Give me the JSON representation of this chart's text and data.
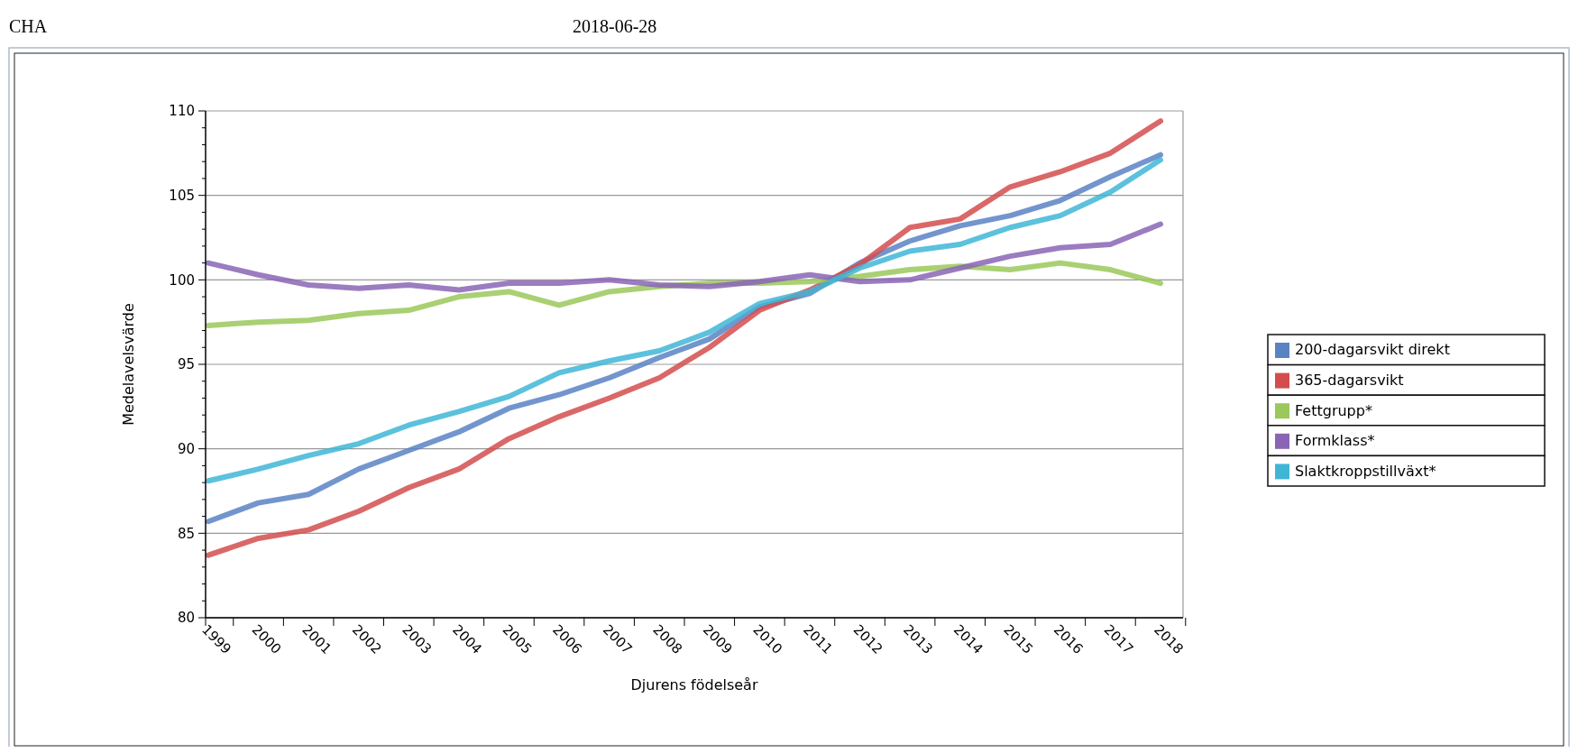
{
  "chart_data": {
    "type": "line",
    "title": "CHA",
    "subtitle": "2018-06-28",
    "xlabel": "Djurens födelseår",
    "ylabel": "Medelavelsvärde",
    "categories": [
      "1999",
      "2000",
      "2001",
      "2002",
      "2003",
      "2004",
      "2005",
      "2006",
      "2007",
      "2008",
      "2009",
      "2010",
      "2011",
      "2012",
      "2013",
      "2014",
      "2015",
      "2016",
      "2017",
      "2018"
    ],
    "series": [
      {
        "name": "200-dagarsvikt direkt",
        "color": "#5b83c4",
        "values": [
          85.7,
          86.8,
          87.3,
          88.8,
          89.9,
          91.0,
          92.4,
          93.2,
          94.2,
          95.4,
          96.5,
          98.4,
          99.2,
          101.0,
          102.3,
          103.2,
          103.8,
          104.7,
          106.1,
          107.4
        ]
      },
      {
        "name": "365-dagarsvikt",
        "color": "#d34d4d",
        "values": [
          83.7,
          84.7,
          85.2,
          86.3,
          87.7,
          88.8,
          90.6,
          91.9,
          93.0,
          94.2,
          96.0,
          98.2,
          99.4,
          100.9,
          103.1,
          103.6,
          105.5,
          106.4,
          107.5,
          109.4
        ]
      },
      {
        "name": "Fettgrupp*",
        "color": "#9ac85a",
        "values": [
          97.3,
          97.5,
          97.6,
          98.0,
          98.2,
          99.0,
          99.3,
          98.5,
          99.3,
          99.6,
          99.8,
          99.8,
          99.9,
          100.2,
          100.6,
          100.8,
          100.6,
          101.0,
          100.6,
          99.8
        ]
      },
      {
        "name": "Formklass*",
        "color": "#8a65b5",
        "values": [
          101.0,
          100.3,
          99.7,
          99.5,
          99.7,
          99.4,
          99.8,
          99.8,
          100.0,
          99.7,
          99.6,
          99.9,
          100.3,
          99.9,
          100.0,
          100.7,
          101.4,
          101.9,
          102.1,
          103.3
        ]
      },
      {
        "name": "Slaktkroppstillväxt*",
        "color": "#3fb6d6",
        "values": [
          88.1,
          88.8,
          89.6,
          90.3,
          91.4,
          92.2,
          93.1,
          94.5,
          95.2,
          95.8,
          96.9,
          98.6,
          99.3,
          100.7,
          101.7,
          102.1,
          103.1,
          103.8,
          105.2,
          107.1
        ]
      }
    ],
    "ylim": [
      80,
      110
    ],
    "yticks": [
      80,
      {
        "value": 81,
        "label": null
      },
      {
        "value": 82,
        "label": null
      },
      {
        "value": 83,
        "label": null
      },
      {
        "value": 84,
        "label": null
      },
      85,
      {
        "value": 86,
        "label": null
      },
      {
        "value": 87,
        "label": null
      },
      {
        "value": 88,
        "label": null
      },
      {
        "value": 89,
        "label": null
      },
      90,
      {
        "value": 91,
        "label": null
      },
      {
        "value": 92,
        "label": null
      },
      {
        "value": 93,
        "label": null
      },
      {
        "value": 94,
        "label": null
      },
      95,
      {
        "value": 96,
        "label": null
      },
      {
        "value": 97,
        "label": null
      },
      {
        "value": 98,
        "label": null
      },
      {
        "value": 99,
        "label": null
      },
      100,
      {
        "value": 101,
        "label": null
      },
      {
        "value": 102,
        "label": null
      },
      {
        "value": 103,
        "label": null
      },
      {
        "value": 104,
        "label": null
      },
      105,
      {
        "value": 106,
        "label": null
      },
      {
        "value": 107,
        "label": null
      },
      {
        "value": 108,
        "label": null
      },
      {
        "value": 109,
        "label": null
      },
      110
    ],
    "grid": "y",
    "legend": "right",
    "marker": "none",
    "line_style": "solid"
  }
}
